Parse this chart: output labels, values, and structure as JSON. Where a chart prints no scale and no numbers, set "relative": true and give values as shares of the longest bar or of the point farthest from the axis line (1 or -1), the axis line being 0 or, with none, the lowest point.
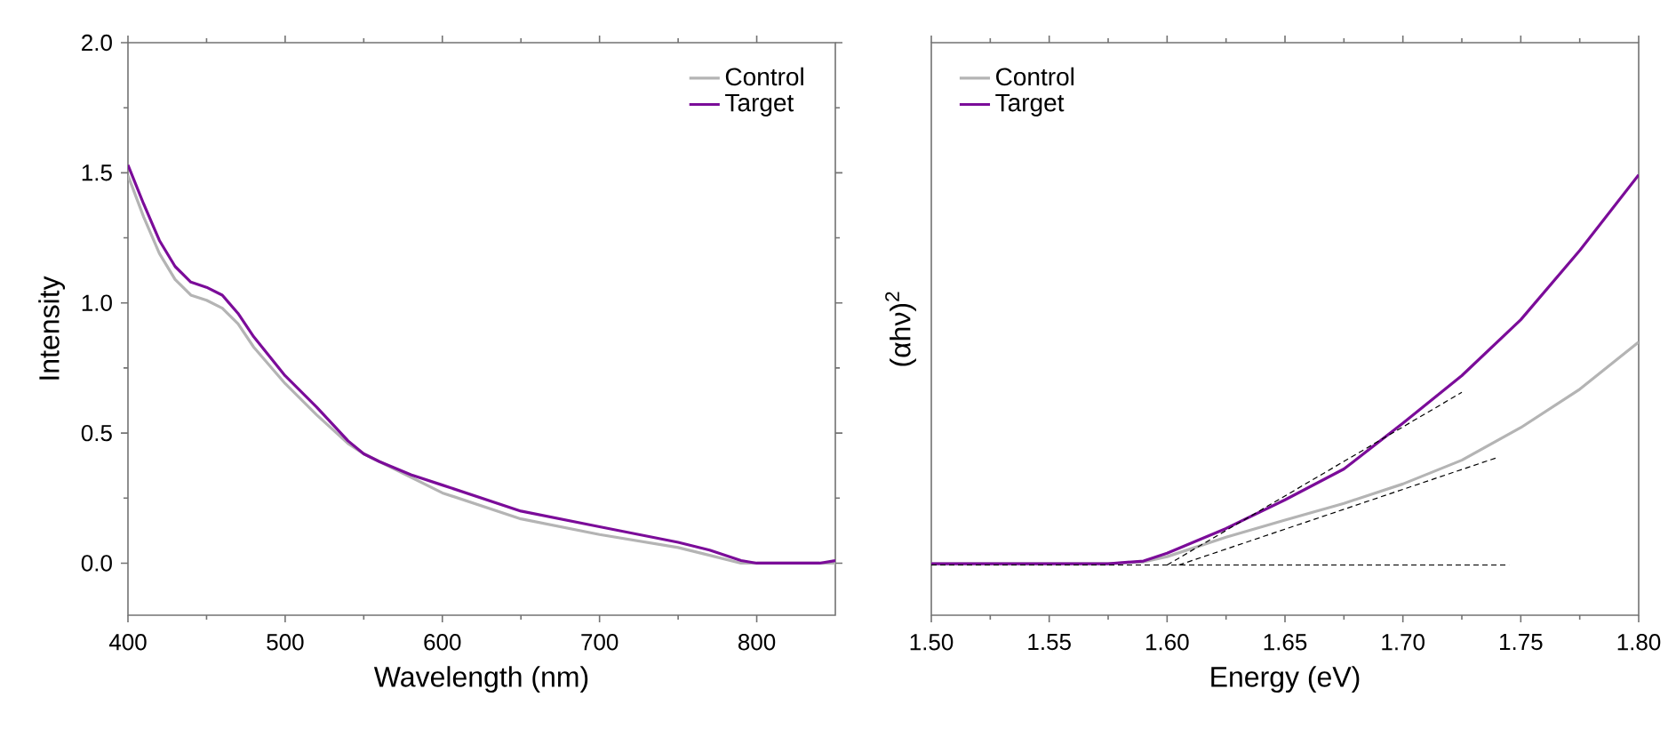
{
  "chart_data": [
    {
      "type": "line",
      "xlabel": "Wavelength (nm)",
      "ylabel": "Intensity",
      "xlim": [
        400,
        850
      ],
      "ylim": [
        -0.2,
        2.0
      ],
      "xticks": [
        400,
        500,
        600,
        700,
        800
      ],
      "yticks": [
        {
          "value": 0,
          "label": "0.0"
        },
        {
          "value": 0.5,
          "label": "0.5"
        },
        {
          "value": 1,
          "label": "1.0"
        },
        {
          "value": 1.5,
          "label": "1.5"
        },
        {
          "value": 2,
          "label": "2.0"
        }
      ],
      "legend": "top right",
      "grid": false,
      "marker": "none",
      "series": [
        {
          "name": "Control",
          "color": "#b4b4b4",
          "x": [
            400,
            410,
            420,
            430,
            440,
            450,
            460,
            470,
            480,
            500,
            520,
            540,
            550,
            560,
            580,
            600,
            650,
            700,
            750,
            770,
            790,
            800,
            850
          ],
          "values": [
            1.49,
            1.33,
            1.19,
            1.09,
            1.03,
            1.01,
            0.98,
            0.92,
            0.83,
            0.69,
            0.57,
            0.46,
            0.42,
            0.39,
            0.33,
            0.27,
            0.17,
            0.11,
            0.06,
            0.03,
            0.0,
            0.0,
            0.0
          ]
        },
        {
          "name": "Target",
          "color": "#7b0c99",
          "x": [
            400,
            410,
            420,
            430,
            440,
            450,
            460,
            470,
            480,
            500,
            520,
            540,
            550,
            560,
            580,
            600,
            650,
            700,
            750,
            770,
            790,
            800,
            840,
            850
          ],
          "values": [
            1.53,
            1.38,
            1.24,
            1.14,
            1.08,
            1.06,
            1.03,
            0.96,
            0.87,
            0.72,
            0.6,
            0.47,
            0.42,
            0.39,
            0.34,
            0.3,
            0.2,
            0.14,
            0.08,
            0.05,
            0.01,
            0.0,
            0.0,
            0.01
          ]
        }
      ]
    },
    {
      "type": "line",
      "xlabel": "Energy (eV)",
      "ylabel": "(αhν)$^{2}$",
      "relative": true,
      "xlim": [
        1.5,
        1.8
      ],
      "xticks": [
        {
          "value": 1.5,
          "label": "1.50"
        },
        {
          "value": 1.55,
          "label": "1.55"
        },
        {
          "value": 1.6,
          "label": "1.60"
        },
        {
          "value": 1.65,
          "label": "1.65"
        },
        {
          "value": 1.7,
          "label": "1.70"
        },
        {
          "value": 1.75,
          "label": "1.75"
        },
        {
          "value": 1.8,
          "label": "1.80"
        }
      ],
      "tick_labels": "x",
      "legend": "top left",
      "grid": false,
      "marker": "none",
      "series": [
        {
          "name": "Control",
          "color": "#b4b4b4",
          "x": [
            1.5,
            1.575,
            1.59,
            1.6,
            1.625,
            1.65,
            1.675,
            1.7,
            1.725,
            1.75,
            1.775,
            1.8
          ],
          "values": [
            0.117,
            0.117,
            0.121,
            0.133,
            0.177,
            0.216,
            0.254,
            0.298,
            0.352,
            0.426,
            0.513,
            0.62
          ]
        },
        {
          "name": "Target",
          "color": "#7b0c99",
          "x": [
            1.5,
            1.575,
            1.59,
            1.6,
            1.625,
            1.65,
            1.675,
            1.7,
            1.725,
            1.75,
            1.775,
            1.8
          ],
          "values": [
            0.117,
            0.117,
            0.123,
            0.141,
            0.197,
            0.262,
            0.332,
            0.436,
            0.544,
            0.671,
            0.828,
            1.0
          ]
        },
        {
          "type": "line",
          "color": "#000000",
          "line_style": "dashed",
          "x": [
            1.5,
            1.745
          ],
          "values": [
            0.114,
            0.114
          ]
        },
        {
          "type": "line",
          "color": "#000000",
          "line_style": "dashed",
          "x": [
            1.6,
            1.725
          ],
          "values": [
            0.114,
            0.506
          ]
        },
        {
          "type": "line",
          "color": "#000000",
          "line_style": "dashed",
          "x": [
            1.605,
            1.74
          ],
          "values": [
            0.114,
            0.358
          ]
        }
      ]
    }
  ]
}
